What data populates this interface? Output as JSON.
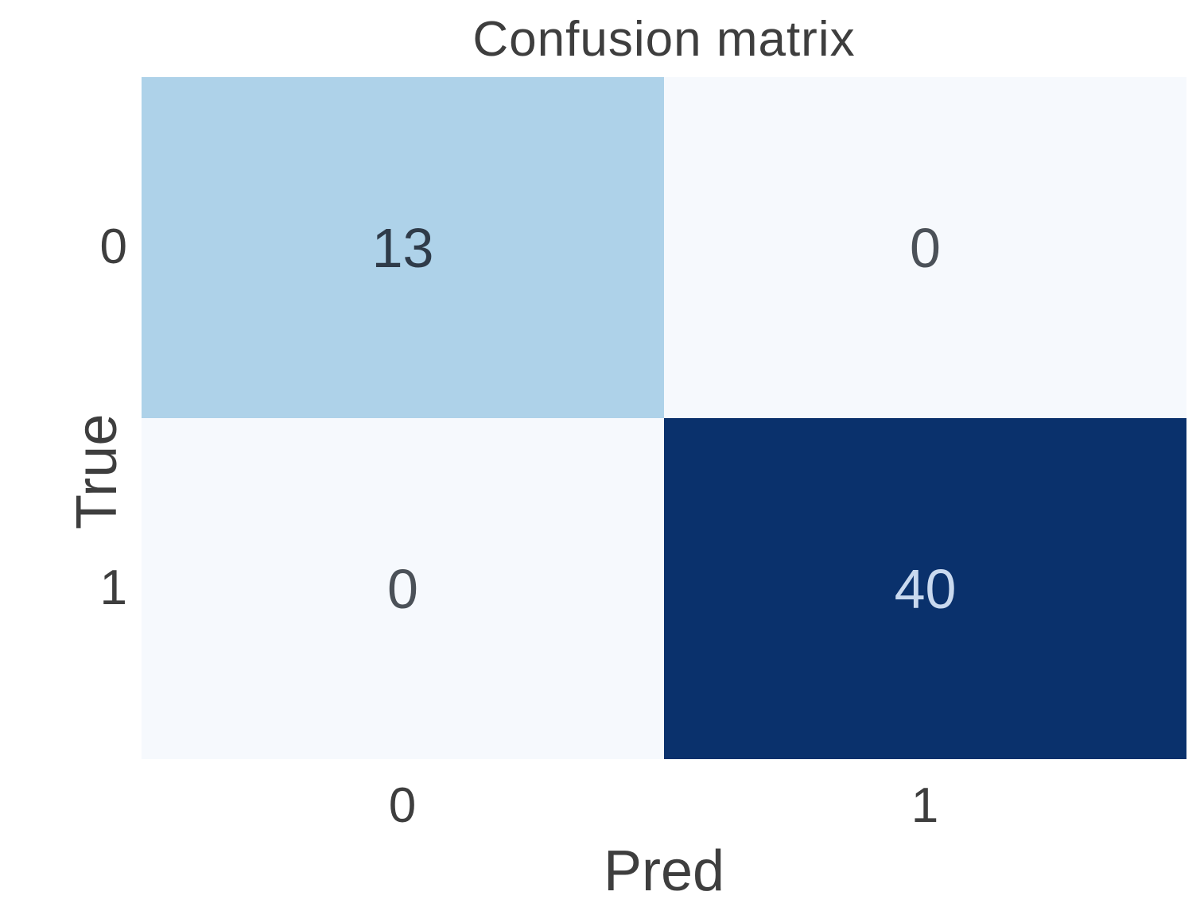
{
  "figure": {
    "title": "Confusion matrix",
    "xlabel": "Pred",
    "ylabel": "True"
  },
  "chart_data": {
    "type": "heatmap",
    "title": "Confusion matrix",
    "xlabel": "Pred",
    "ylabel": "True",
    "x_categories": [
      "0",
      "1"
    ],
    "y_categories": [
      "0",
      "1"
    ],
    "matrix": [
      [
        13,
        0
      ],
      [
        0,
        40
      ]
    ],
    "value_range": [
      0,
      40
    ],
    "colormap": "Blues",
    "legend": "none",
    "grid": false,
    "colors": {
      "cell_low_mid": "#aed2e9",
      "cell_min": "#f6f9fd",
      "cell_max": "#0a316c",
      "annotation_dark": "#2f3b49",
      "annotation_zero": "#4b5158",
      "annotation_light": "#c9d9ef",
      "axis_text": "#3e3e3e",
      "background": "#ffffff"
    },
    "cells": [
      {
        "row": "0",
        "col": "0",
        "value": "13",
        "bg": "#aed2e9",
        "fg": "#2f3b49"
      },
      {
        "row": "0",
        "col": "1",
        "value": "0",
        "bg": "#f6f9fd",
        "fg": "#4b5158"
      },
      {
        "row": "1",
        "col": "0",
        "value": "0",
        "bg": "#f6f9fd",
        "fg": "#4b5158"
      },
      {
        "row": "1",
        "col": "1",
        "value": "40",
        "bg": "#0a316c",
        "fg": "#c9d9ef"
      }
    ]
  }
}
